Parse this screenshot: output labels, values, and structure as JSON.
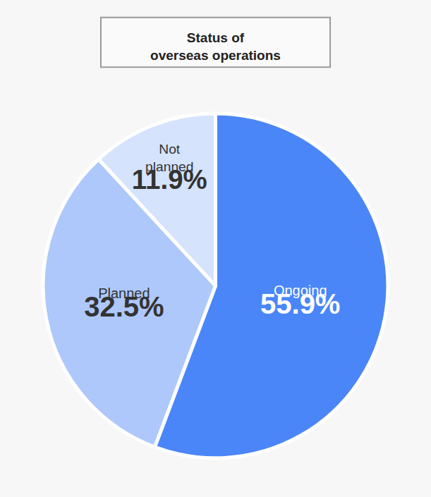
{
  "chart_data": {
    "type": "pie",
    "title": "Status of\noverseas operations",
    "categories": [
      "Ongoing",
      "Planned",
      "Not planned"
    ],
    "values": [
      55.9,
      32.5,
      11.9
    ],
    "value_labels": [
      "55.9%",
      "32.5%",
      "11.9%"
    ],
    "colors": [
      "#4a86f7",
      "#aec8fb",
      "#d5e3fd"
    ],
    "data_labels": true
  }
}
